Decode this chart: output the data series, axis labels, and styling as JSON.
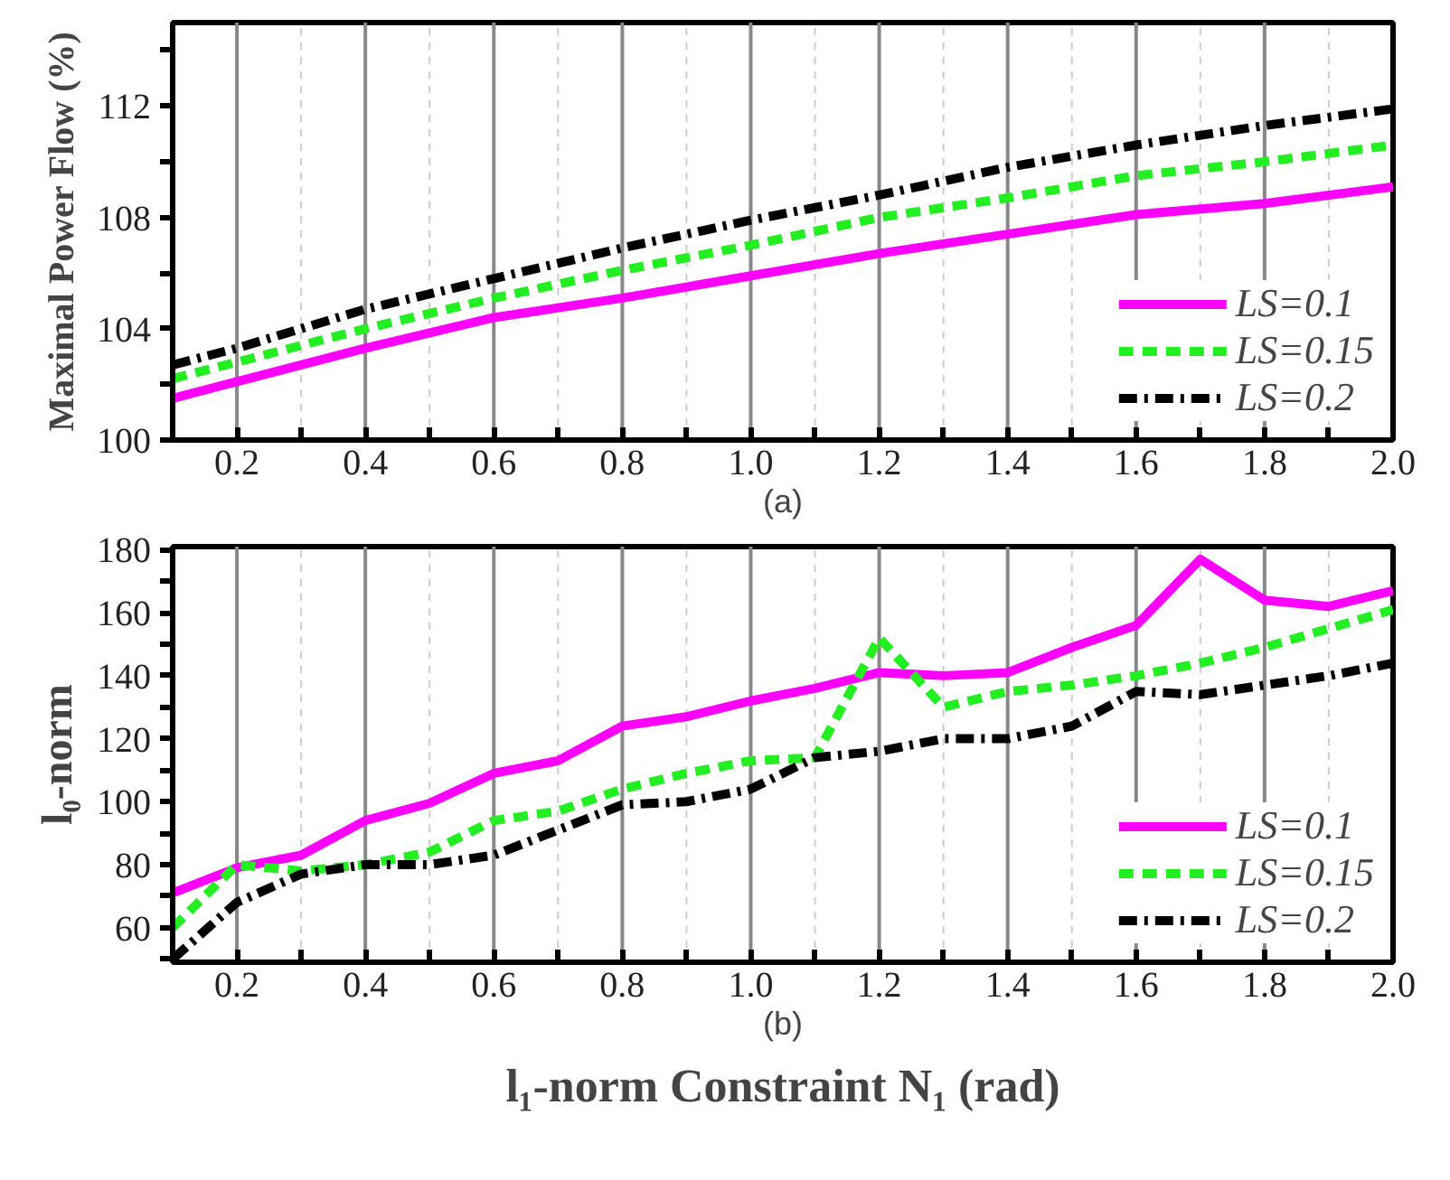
{
  "chart_data": [
    {
      "type": "line",
      "xlabel": "(a)",
      "ylabel": "Maximal Power Flow (%)",
      "x": [
        0.1,
        0.2,
        0.4,
        0.6,
        0.8,
        1.0,
        1.2,
        1.4,
        1.6,
        1.8,
        2.0
      ],
      "xlim": [
        0.1,
        2.0
      ],
      "xticks": [
        {
          "value": 0.1,
          "label": null
        },
        0.2,
        {
          "value": 0.3,
          "label": null
        },
        0.4,
        {
          "value": 0.5,
          "label": null
        },
        0.6,
        {
          "value": 0.7,
          "label": null
        },
        0.8,
        {
          "value": 0.9,
          "label": null
        },
        "1.0",
        {
          "value": 1.1,
          "label": null
        },
        1.2,
        {
          "value": 1.3,
          "label": null
        },
        1.4,
        {
          "value": 1.5,
          "label": null
        },
        1.6,
        {
          "value": 1.7,
          "label": null
        },
        1.8,
        {
          "value": 1.9,
          "label": null
        },
        "2.0"
      ],
      "ylim": [
        100,
        115
      ],
      "yticks": [
        100,
        {
          "value": 102,
          "label": null
        },
        104,
        {
          "value": 106,
          "label": null
        },
        108,
        {
          "value": 110,
          "label": null
        },
        112,
        {
          "value": 114,
          "label": null
        }
      ],
      "grid": "x",
      "legend": "bottom right",
      "series": [
        {
          "name": "LS=0.1",
          "color": "#ff00ff",
          "line_style": "solid",
          "values": [
            101.5,
            102.1,
            103.3,
            104.4,
            105.1,
            105.9,
            106.7,
            107.4,
            108.1,
            108.5,
            109.1
          ]
        },
        {
          "name": "LS=0.15",
          "color": "#22ee22",
          "line_style": "dashed",
          "values": [
            102.2,
            102.8,
            104.0,
            105.1,
            106.1,
            107.0,
            108.0,
            108.7,
            109.5,
            110.0,
            110.6
          ]
        },
        {
          "name": "LS=0.2",
          "color": "#000000",
          "line_style": "dashdot",
          "values": [
            102.7,
            103.3,
            104.7,
            105.8,
            106.9,
            107.9,
            108.8,
            109.8,
            110.6,
            111.3,
            111.9
          ]
        }
      ]
    },
    {
      "type": "line",
      "xlabel": "(b)",
      "ylabel": "l₀-norm",
      "annotations": [
        "l₁-norm Constraint N₁ (rad)"
      ],
      "x": [
        0.1,
        0.2,
        0.3,
        0.4,
        0.5,
        0.6,
        0.7,
        0.8,
        0.9,
        1.0,
        1.1,
        1.2,
        1.3,
        1.4,
        1.5,
        1.6,
        1.7,
        1.8,
        1.9,
        2.0
      ],
      "xlim": [
        0.1,
        2.0
      ],
      "xticks": [
        {
          "value": 0.1,
          "label": null
        },
        0.2,
        {
          "value": 0.3,
          "label": null
        },
        0.4,
        {
          "value": 0.5,
          "label": null
        },
        0.6,
        {
          "value": 0.7,
          "label": null
        },
        0.8,
        {
          "value": 0.9,
          "label": null
        },
        "1.0",
        {
          "value": 1.1,
          "label": null
        },
        1.2,
        {
          "value": 1.3,
          "label": null
        },
        1.4,
        {
          "value": 1.5,
          "label": null
        },
        1.6,
        {
          "value": 1.7,
          "label": null
        },
        1.8,
        {
          "value": 1.9,
          "label": null
        },
        "2.0"
      ],
      "ylim": [
        49,
        181
      ],
      "yticks": [
        {
          "value": 50,
          "label": null
        },
        60,
        {
          "value": 70,
          "label": null
        },
        80,
        {
          "value": 90,
          "label": null
        },
        100,
        {
          "value": 110,
          "label": null
        },
        120,
        {
          "value": 130,
          "label": null
        },
        140,
        {
          "value": 150,
          "label": null
        },
        160,
        {
          "value": 170,
          "label": null
        },
        180
      ],
      "grid": "x",
      "legend": "bottom right",
      "series": [
        {
          "name": "LS=0.1",
          "color": "#ff00ff",
          "line_style": "solid",
          "values": [
            71,
            79,
            83,
            94,
            99.5,
            109,
            113,
            124,
            127,
            132,
            136,
            141,
            140,
            141,
            149,
            156,
            177,
            164,
            162,
            167
          ]
        },
        {
          "name": "LS=0.15",
          "color": "#22ee22",
          "line_style": "dashed",
          "values": [
            60,
            80,
            78,
            80,
            84,
            94,
            97,
            104,
            109,
            113,
            114,
            152,
            130,
            135,
            137,
            140,
            144,
            149,
            155,
            161
          ]
        },
        {
          "name": "LS=0.2",
          "color": "#000000",
          "line_style": "dashdot",
          "values": [
            50,
            68,
            77,
            80,
            80,
            83,
            91,
            99,
            100,
            104,
            114,
            116,
            120,
            120,
            124,
            135,
            134,
            137,
            140,
            144
          ]
        }
      ]
    }
  ]
}
